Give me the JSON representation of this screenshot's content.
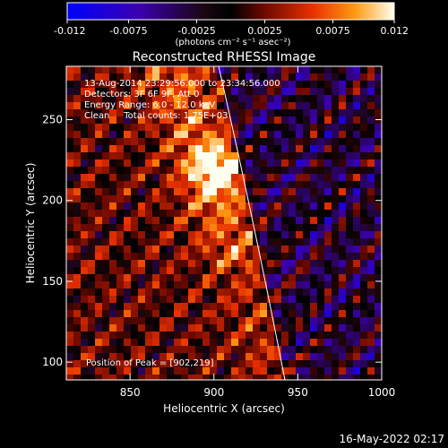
{
  "colorbar": {
    "ticks": [
      "-0.012",
      "-0.0075",
      "-0.0025",
      "0.0025",
      "0.0075",
      "0.012"
    ],
    "tick_values": [
      -0.012,
      -0.0075,
      -0.0025,
      0.0025,
      0.0075,
      0.012
    ],
    "range": [
      -0.012,
      0.012
    ],
    "unit_label": "(photons cm⁻² s⁻¹ asec⁻²)"
  },
  "plot": {
    "title": "Reconstructed RHESSI Image",
    "xlabel": "Heliocentric X (arcsec)",
    "ylabel": "Heliocentric Y (arcsec)",
    "xlim": [
      812,
      1000
    ],
    "ylim": [
      89,
      283
    ],
    "xticks": [
      850,
      900,
      950,
      1000
    ],
    "yticks": [
      100,
      150,
      200,
      250
    ],
    "info_lines": [
      "13-Aug-2014 23:29:56.000 to 23:34:56.000",
      "Detectors: 3F 6F 9F, Att 0",
      "Energy Range: 6.0 - 12.0 keV",
      "Clean     Total counts: 1.75E+03"
    ],
    "peak_label": "Position of Peak = [902,219]",
    "peak": [
      902,
      219
    ]
  },
  "footer": {
    "date": "16-May-2022 02:17"
  },
  "colors": {
    "background": "#000000",
    "text": "#ffffff",
    "limb_line": "#ffffff"
  }
}
